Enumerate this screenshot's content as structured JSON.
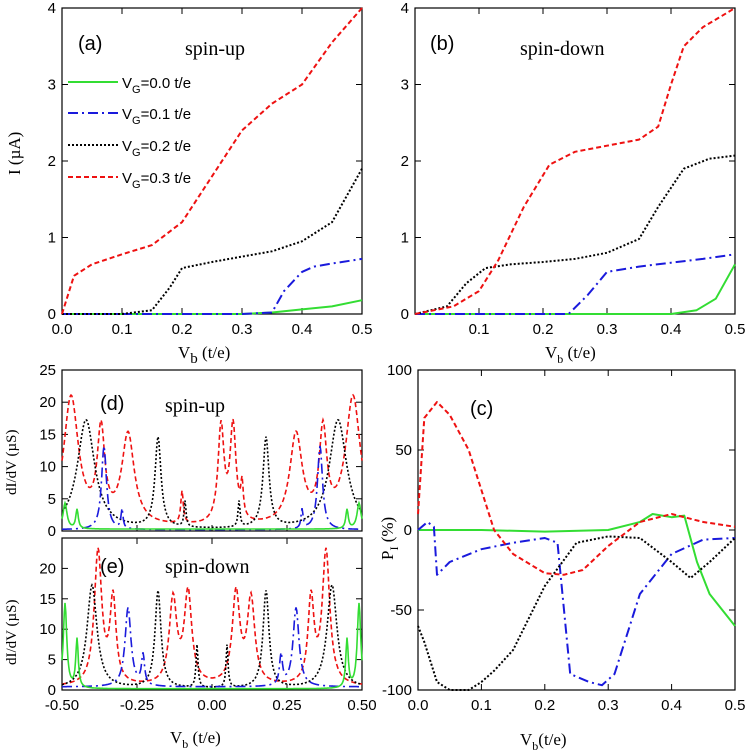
{
  "colors": {
    "vg0": "#33dd33",
    "vg1": "#1a1adc",
    "vg2": "#000000",
    "vg3": "#ee1111"
  },
  "legend": [
    {
      "label": "V",
      "sub": "G",
      "rest": "=0.0 t/e"
    },
    {
      "label": "V",
      "sub": "G",
      "rest": "=0.1 t/e"
    },
    {
      "label": "V",
      "sub": "G",
      "rest": "=0.2 t/e"
    },
    {
      "label": "V",
      "sub": "G",
      "rest": "=0.3 t/e"
    }
  ],
  "chart_data": [
    {
      "type": "line",
      "panel_label": "(a)",
      "annotation": "spin-up",
      "ylabel": "I (µA)",
      "xlabel": "V_b (t/e)",
      "xlim": [
        0,
        0.5
      ],
      "ylim": [
        0,
        4
      ],
      "xticks": [
        "0.0",
        "0.1",
        "0.2",
        "0.3",
        "0.4",
        "0.5"
      ],
      "yticks": [
        "0",
        "1",
        "2",
        "3",
        "4"
      ],
      "series": [
        {
          "name": "V_G=0.0 t/e",
          "x": [
            0,
            0.1,
            0.2,
            0.3,
            0.35,
            0.4,
            0.45,
            0.5
          ],
          "y": [
            0,
            0,
            0,
            0,
            0.02,
            0.06,
            0.1,
            0.18
          ]
        },
        {
          "name": "V_G=0.1 t/e",
          "x": [
            0,
            0.3,
            0.35,
            0.37,
            0.4,
            0.42,
            0.45,
            0.5
          ],
          "y": [
            0,
            0,
            0.02,
            0.3,
            0.55,
            0.62,
            0.66,
            0.72
          ]
        },
        {
          "name": "V_G=0.2 t/e",
          "x": [
            0,
            0.1,
            0.15,
            0.18,
            0.2,
            0.25,
            0.3,
            0.35,
            0.4,
            0.45,
            0.5
          ],
          "y": [
            0,
            0,
            0.05,
            0.35,
            0.6,
            0.68,
            0.75,
            0.82,
            0.95,
            1.2,
            1.9
          ]
        },
        {
          "name": "V_G=0.3 t/e",
          "x": [
            0,
            0.02,
            0.05,
            0.1,
            0.15,
            0.2,
            0.25,
            0.3,
            0.35,
            0.4,
            0.45,
            0.5
          ],
          "y": [
            0,
            0.5,
            0.65,
            0.78,
            0.9,
            1.2,
            1.8,
            2.4,
            2.75,
            3.0,
            3.55,
            4.0
          ]
        }
      ]
    },
    {
      "type": "line",
      "panel_label": "(b)",
      "annotation": "spin-down",
      "xlabel": "V_b (t/e)",
      "xlim": [
        0,
        0.5
      ],
      "ylim": [
        0,
        4
      ],
      "xticks": [
        "0.1",
        "0.2",
        "0.3",
        "0.4",
        "0.5"
      ],
      "yticks": [
        "0",
        "1",
        "2",
        "3",
        "4"
      ],
      "series": [
        {
          "name": "V_G=0.0 t/e",
          "x": [
            0,
            0.4,
            0.44,
            0.47,
            0.5
          ],
          "y": [
            0,
            0,
            0.05,
            0.2,
            0.65
          ]
        },
        {
          "name": "V_G=0.1 t/e",
          "x": [
            0,
            0.24,
            0.27,
            0.3,
            0.35,
            0.4,
            0.45,
            0.5
          ],
          "y": [
            0,
            0,
            0.25,
            0.55,
            0.62,
            0.67,
            0.72,
            0.78
          ]
        },
        {
          "name": "V_G=0.2 t/e",
          "x": [
            0,
            0.05,
            0.08,
            0.11,
            0.15,
            0.2,
            0.25,
            0.3,
            0.35,
            0.38,
            0.42,
            0.46,
            0.5
          ],
          "y": [
            0,
            0.1,
            0.4,
            0.6,
            0.65,
            0.68,
            0.72,
            0.8,
            0.98,
            1.4,
            1.9,
            2.03,
            2.07
          ]
        },
        {
          "name": "V_G=0.3 t/e",
          "x": [
            0,
            0.06,
            0.1,
            0.13,
            0.17,
            0.21,
            0.25,
            0.3,
            0.35,
            0.38,
            0.4,
            0.42,
            0.45,
            0.48,
            0.5
          ],
          "y": [
            0,
            0.1,
            0.3,
            0.7,
            1.4,
            1.95,
            2.12,
            2.2,
            2.28,
            2.45,
            3.0,
            3.5,
            3.75,
            3.9,
            4.0
          ]
        }
      ]
    },
    {
      "type": "line",
      "panel_label": "(c)",
      "ylabel": "P_I (%)",
      "xlabel": "V_b(t/e)",
      "xlim": [
        0,
        0.5
      ],
      "ylim": [
        -100,
        100
      ],
      "xticks": [
        "0.0",
        "0.1",
        "0.2",
        "0.3",
        "0.4",
        "0.5"
      ],
      "yticks": [
        "-100",
        "-50",
        "0",
        "50",
        "100"
      ],
      "series": [
        {
          "name": "V_G=0.0 t/e",
          "x": [
            0,
            0.1,
            0.2,
            0.3,
            0.35,
            0.37,
            0.4,
            0.42,
            0.44,
            0.46,
            0.48,
            0.5
          ],
          "y": [
            0,
            0,
            -1,
            0,
            5,
            10,
            8,
            9,
            -20,
            -40,
            -50,
            -60
          ]
        },
        {
          "name": "V_G=0.1 t/e",
          "x": [
            0,
            0.015,
            0.025,
            0.03,
            0.05,
            0.1,
            0.15,
            0.2,
            0.22,
            0.24,
            0.27,
            0.29,
            0.31,
            0.35,
            0.4,
            0.45,
            0.5
          ],
          "y": [
            0,
            5,
            2,
            -28,
            -20,
            -12,
            -8,
            -5,
            -8,
            -90,
            -95,
            -97,
            -90,
            -40,
            -15,
            -6,
            -5
          ]
        },
        {
          "name": "V_G=0.2 t/e",
          "x": [
            0,
            0.01,
            0.03,
            0.05,
            0.08,
            0.1,
            0.12,
            0.15,
            0.2,
            0.25,
            0.3,
            0.35,
            0.4,
            0.43,
            0.46,
            0.5
          ],
          "y": [
            -60,
            -70,
            -95,
            -100,
            -100,
            -95,
            -88,
            -75,
            -35,
            -8,
            -4,
            -5,
            -20,
            -30,
            -20,
            -5
          ]
        },
        {
          "name": "V_G=0.3 t/e",
          "x": [
            0,
            0.01,
            0.03,
            0.05,
            0.08,
            0.1,
            0.12,
            0.15,
            0.2,
            0.23,
            0.26,
            0.3,
            0.35,
            0.4,
            0.45,
            0.5
          ],
          "y": [
            10,
            70,
            80,
            72,
            50,
            25,
            0,
            -15,
            -27,
            -28,
            -25,
            -10,
            5,
            10,
            5,
            2
          ]
        }
      ]
    },
    {
      "type": "line",
      "panel_label": "(d)",
      "annotation": "spin-up",
      "ylabel": "dI/dV (µS)",
      "xlim": [
        -0.5,
        0.5
      ],
      "ylim": [
        0,
        25
      ],
      "yticks": [
        "0",
        "5",
        "10",
        "15",
        "20",
        "25"
      ]
    },
    {
      "type": "line",
      "panel_label": "(e)",
      "annotation": "spin-down",
      "ylabel": "dI/dV (µS)",
      "xlabel": "V_b (t/e)",
      "xlim": [
        -0.5,
        0.5
      ],
      "ylim": [
        0,
        25
      ],
      "xticks": [
        "-0.50",
        "-0.25",
        "0.00",
        "0.25",
        "0.50"
      ],
      "yticks": [
        "0",
        "5",
        "10",
        "15",
        "20"
      ]
    }
  ]
}
